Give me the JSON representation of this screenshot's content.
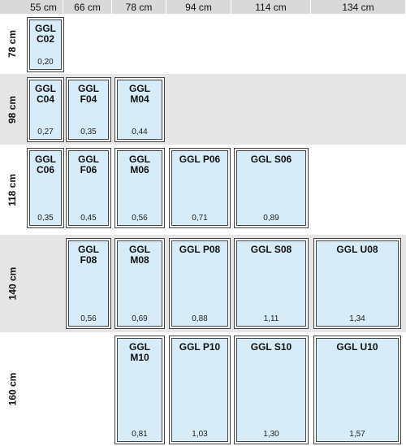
{
  "columns": [
    "55 cm",
    "66 cm",
    "78 cm",
    "94 cm",
    "114 cm",
    "134 cm"
  ],
  "rows": [
    "78 cm",
    "98 cm",
    "118 cm",
    "140 cm",
    "160 cm"
  ],
  "windows": [
    {
      "code": "GGL C02",
      "area": "0,20",
      "col": 0,
      "row": 0
    },
    {
      "code": "GGL C04",
      "area": "0,27",
      "col": 0,
      "row": 1
    },
    {
      "code": "GGL F04",
      "area": "0,35",
      "col": 1,
      "row": 1
    },
    {
      "code": "GGL M04",
      "area": "0,44",
      "col": 2,
      "row": 1
    },
    {
      "code": "GGL C06",
      "area": "0,35",
      "col": 0,
      "row": 2
    },
    {
      "code": "GGL F06",
      "area": "0,45",
      "col": 1,
      "row": 2
    },
    {
      "code": "GGL M06",
      "area": "0,56",
      "col": 2,
      "row": 2
    },
    {
      "code": "GGL P06",
      "area": "0,71",
      "col": 3,
      "row": 2
    },
    {
      "code": "GGL S06",
      "area": "0,89",
      "col": 4,
      "row": 2
    },
    {
      "code": "GGL F08",
      "area": "0,56",
      "col": 1,
      "row": 3
    },
    {
      "code": "GGL M08",
      "area": "0,69",
      "col": 2,
      "row": 3
    },
    {
      "code": "GGL P08",
      "area": "0,88",
      "col": 3,
      "row": 3
    },
    {
      "code": "GGL S08",
      "area": "1,11",
      "col": 4,
      "row": 3
    },
    {
      "code": "GGL U08",
      "area": "1,34",
      "col": 5,
      "row": 3
    },
    {
      "code": "GGL M10",
      "area": "0,81",
      "col": 2,
      "row": 4
    },
    {
      "code": "GGL P10",
      "area": "1,03",
      "col": 3,
      "row": 4
    },
    {
      "code": "GGL S10",
      "area": "1,30",
      "col": 4,
      "row": 4
    },
    {
      "code": "GGL U10",
      "area": "1,57",
      "col": 5,
      "row": 4
    }
  ],
  "colors": {
    "glass": "#d6ecf8",
    "band": "#e6e6e6",
    "header": "#d9d9d9"
  }
}
